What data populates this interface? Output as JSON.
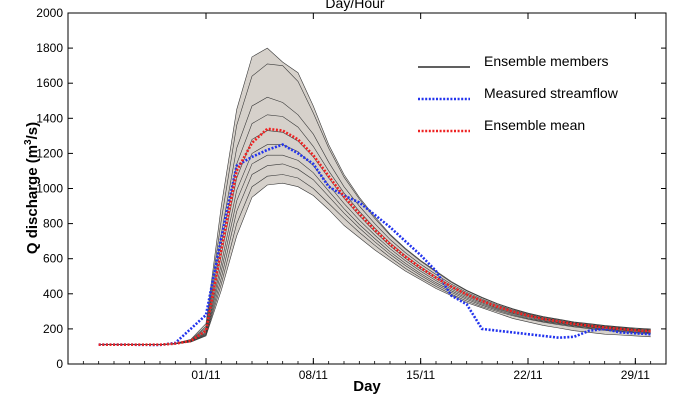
{
  "chart_data": {
    "type": "line",
    "title": "Day/Hour",
    "xlabel": "Day",
    "ylabel_main": "Q discharge (m",
    "ylabel_sup": "3",
    "ylabel_end": "/s)",
    "xlim": [
      -8,
      31
    ],
    "ylim": [
      0,
      2000
    ],
    "yticks": [
      0,
      200,
      400,
      600,
      800,
      1000,
      1200,
      1400,
      1600,
      1800,
      2000
    ],
    "xticks": [
      {
        "pos": 1,
        "label": "01/11"
      },
      {
        "pos": 8,
        "label": "08/11"
      },
      {
        "pos": 15,
        "label": "15/11"
      },
      {
        "pos": 22,
        "label": "22/11"
      },
      {
        "pos": 29,
        "label": "29/11"
      }
    ],
    "x": [
      -6,
      -4,
      -2,
      -1,
      0,
      1,
      2,
      3,
      4,
      5,
      6,
      7,
      8,
      9,
      10,
      11,
      12,
      13,
      14,
      15,
      16,
      17,
      18,
      19,
      20,
      21,
      22,
      23,
      24,
      25,
      26,
      27,
      28,
      29,
      30
    ],
    "band": {
      "lower": [
        110,
        110,
        110,
        115,
        125,
        160,
        420,
        730,
        950,
        1020,
        1030,
        1010,
        960,
        880,
        790,
        720,
        650,
        590,
        530,
        480,
        430,
        390,
        350,
        320,
        290,
        260,
        240,
        220,
        205,
        190,
        180,
        170,
        165,
        160,
        155
      ],
      "upper": [
        110,
        110,
        110,
        118,
        140,
        230,
        900,
        1450,
        1750,
        1800,
        1720,
        1660,
        1470,
        1250,
        1080,
        950,
        840,
        740,
        660,
        590,
        530,
        470,
        420,
        380,
        345,
        315,
        290,
        270,
        255,
        240,
        230,
        220,
        212,
        205,
        200
      ]
    },
    "members": [
      {
        "values": [
          110,
          110,
          110,
          118,
          140,
          230,
          900,
          1450,
          1750,
          1800,
          1720,
          1660,
          1470,
          1250,
          1080,
          950,
          840,
          740,
          660,
          590,
          530,
          470,
          420,
          380,
          345,
          315,
          290,
          270,
          255,
          240,
          230,
          220,
          212,
          205,
          200
        ]
      },
      {
        "values": [
          110,
          110,
          110,
          117,
          137,
          215,
          820,
          1360,
          1640,
          1710,
          1700,
          1610,
          1430,
          1230,
          1065,
          940,
          830,
          735,
          655,
          585,
          525,
          466,
          417,
          377,
          342,
          312,
          287,
          267,
          252,
          237,
          227,
          217,
          209,
          202,
          197
        ]
      },
      {
        "values": [
          110,
          110,
          110,
          116,
          134,
          205,
          740,
          1230,
          1470,
          1520,
          1490,
          1420,
          1310,
          1150,
          1010,
          900,
          800,
          710,
          635,
          568,
          510,
          455,
          408,
          370,
          336,
          307,
          283,
          263,
          248,
          233,
          223,
          213,
          206,
          199,
          194
        ]
      },
      {
        "values": [
          110,
          110,
          110,
          116,
          132,
          195,
          680,
          1140,
          1370,
          1420,
          1410,
          1350,
          1240,
          1100,
          975,
          870,
          775,
          690,
          618,
          553,
          497,
          445,
          400,
          363,
          330,
          302,
          279,
          260,
          245,
          230,
          220,
          210,
          203,
          196,
          191
        ]
      },
      {
        "values": [
          110,
          110,
          110,
          115,
          130,
          185,
          620,
          1060,
          1280,
          1330,
          1320,
          1270,
          1180,
          1060,
          945,
          845,
          755,
          673,
          603,
          540,
          486,
          436,
          392,
          356,
          324,
          297,
          275,
          256,
          241,
          227,
          217,
          207,
          200,
          193,
          188
        ]
      },
      {
        "values": [
          110,
          110,
          110,
          115,
          129,
          178,
          570,
          990,
          1200,
          1250,
          1250,
          1210,
          1130,
          1020,
          915,
          820,
          735,
          657,
          589,
          528,
          475,
          427,
          384,
          349,
          318,
          292,
          270,
          252,
          237,
          223,
          213,
          203,
          196,
          189,
          184
        ]
      },
      {
        "values": [
          110,
          110,
          110,
          115,
          128,
          172,
          530,
          930,
          1140,
          1190,
          1190,
          1160,
          1090,
          985,
          885,
          795,
          715,
          640,
          574,
          515,
          463,
          417,
          376,
          342,
          312,
          287,
          265,
          247,
          233,
          219,
          209,
          199,
          192,
          185,
          180
        ]
      },
      {
        "values": [
          110,
          110,
          110,
          115,
          127,
          167,
          490,
          870,
          1080,
          1130,
          1140,
          1110,
          1050,
          955,
          860,
          775,
          697,
          625,
          561,
          504,
          453,
          408,
          368,
          335,
          306,
          281,
          260,
          243,
          229,
          215,
          205,
          195,
          188,
          181,
          176
        ]
      },
      {
        "values": [
          110,
          110,
          110,
          115,
          126,
          163,
          455,
          800,
          1010,
          1070,
          1080,
          1060,
          1000,
          915,
          830,
          750,
          677,
          608,
          546,
          491,
          442,
          398,
          359,
          327,
          299,
          275,
          255,
          238,
          224,
          211,
          201,
          191,
          184,
          177,
          172
        ]
      },
      {
        "values": [
          110,
          110,
          110,
          115,
          125,
          160,
          420,
          730,
          950,
          1020,
          1030,
          1010,
          960,
          880,
          790,
          720,
          650,
          590,
          530,
          480,
          430,
          390,
          350,
          320,
          290,
          260,
          240,
          220,
          205,
          190,
          180,
          170,
          165,
          160,
          155
        ]
      }
    ],
    "series": [
      {
        "name": "Ensemble members",
        "color": "#000000"
      },
      {
        "name": "Measured streamflow",
        "color": "#2233ee",
        "values": [
          110,
          110,
          108,
          120,
          200,
          280,
          720,
          1130,
          1180,
          1220,
          1250,
          1200,
          1140,
          1010,
          960,
          920,
          850,
          780,
          700,
          620,
          530,
          390,
          340,
          200,
          190,
          180,
          170,
          160,
          150,
          155,
          190,
          200,
          180,
          175,
          170
        ]
      },
      {
        "name": "Ensemble mean",
        "color": "#ee2222",
        "values": [
          110,
          110,
          110,
          116,
          131,
          190,
          650,
          1100,
          1260,
          1340,
          1330,
          1280,
          1190,
          1070,
          955,
          855,
          765,
          683,
          612,
          548,
          492,
          441,
          396,
          359,
          327,
          299,
          276,
          257,
          242,
          228,
          218,
          208,
          200,
          192,
          187
        ]
      }
    ],
    "legend_position": "top-right",
    "grid": false
  }
}
